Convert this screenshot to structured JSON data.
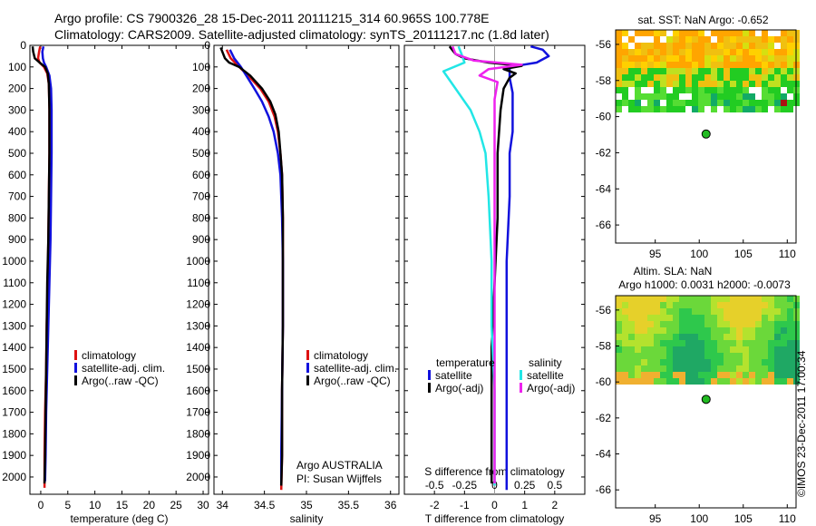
{
  "header": {
    "line1": "Argo profile: CS 7900326_28 15-Dec-2011 20111215_314 60.965S 100.778E",
    "line2": "Climatology: CARS2009. Satellite-adjusted climatology: synTS_20111217.nc (1.8d later)"
  },
  "colors": {
    "climatology": "#dd1111",
    "satellite": "#1111dd",
    "argo": "#000000",
    "sal_satellite": "#22e6e6",
    "sal_argo": "#ee22ee"
  },
  "chart_data": [
    {
      "type": "line",
      "id": "temperature",
      "xlabel": "temperature (deg C)",
      "ylabel": "",
      "xlim": [
        -2,
        31
      ],
      "ylim": [
        2080,
        0
      ],
      "xticks": [
        0,
        5,
        10,
        15,
        20,
        25,
        30
      ],
      "yticks": [
        0,
        100,
        200,
        300,
        400,
        500,
        600,
        700,
        800,
        900,
        1000,
        1100,
        1200,
        1300,
        1400,
        1500,
        1600,
        1700,
        1800,
        1900,
        2000
      ],
      "legend": [
        "climatology",
        "satellite-adj. clim.",
        "Argo(..raw -QC)"
      ],
      "series": [
        {
          "name": "climatology",
          "color": "#dd1111",
          "points": [
            [
              -0.1,
              5
            ],
            [
              -0.3,
              30
            ],
            [
              -0.5,
              60
            ],
            [
              -0.2,
              80
            ],
            [
              0.6,
              100
            ],
            [
              1.2,
              130
            ],
            [
              1.5,
              180
            ],
            [
              1.6,
              300
            ],
            [
              1.6,
              500
            ],
            [
              1.5,
              700
            ],
            [
              1.4,
              900
            ],
            [
              1.3,
              1100
            ],
            [
              1.1,
              1300
            ],
            [
              1.0,
              1500
            ],
            [
              0.8,
              1700
            ],
            [
              0.7,
              1900
            ],
            [
              0.7,
              2050
            ]
          ]
        },
        {
          "name": "satellite-adj. clim.",
          "color": "#1111dd",
          "points": [
            [
              0.5,
              5
            ],
            [
              0.3,
              30
            ],
            [
              0.4,
              60
            ],
            [
              0.6,
              80
            ],
            [
              1.0,
              100
            ],
            [
              1.6,
              140
            ],
            [
              1.9,
              200
            ],
            [
              2.0,
              300
            ],
            [
              2.0,
              500
            ],
            [
              1.9,
              700
            ],
            [
              1.8,
              900
            ],
            [
              1.6,
              1100
            ],
            [
              1.4,
              1300
            ],
            [
              1.2,
              1500
            ],
            [
              1.0,
              1700
            ],
            [
              0.9,
              1900
            ],
            [
              0.8,
              2020
            ]
          ]
        },
        {
          "name": "Argo(..raw -QC)",
          "color": "#000000",
          "points": [
            [
              -1.5,
              5
            ],
            [
              -1.4,
              30
            ],
            [
              -1.1,
              60
            ],
            [
              -0.2,
              80
            ],
            [
              0.8,
              100
            ],
            [
              1.3,
              130
            ],
            [
              1.5,
              180
            ],
            [
              1.6,
              300
            ],
            [
              1.6,
              500
            ],
            [
              1.5,
              700
            ],
            [
              1.4,
              900
            ],
            [
              1.2,
              1100
            ],
            [
              1.1,
              1300
            ],
            [
              1.0,
              1500
            ],
            [
              0.9,
              1700
            ],
            [
              0.8,
              1900
            ],
            [
              0.7,
              2030
            ]
          ]
        }
      ]
    },
    {
      "type": "line",
      "id": "salinity",
      "xlabel": "salinity",
      "xlim": [
        33.9,
        36.1
      ],
      "ylim": [
        2080,
        0
      ],
      "xticks": [
        34,
        34.5,
        35,
        35.5,
        36
      ],
      "yticks": [
        0,
        100,
        200,
        300,
        400,
        500,
        600,
        700,
        800,
        900,
        1000,
        1100,
        1200,
        1300,
        1400,
        1500,
        1600,
        1700,
        1800,
        1900,
        2000
      ],
      "legend": [
        "climatology",
        "satellite-adj. clim.",
        "Argo(..raw -QC)"
      ],
      "annotations": [
        "Argo AUSTRALIA",
        "PI: Susan Wijffels"
      ],
      "series": [
        {
          "name": "climatology",
          "color": "#dd1111",
          "points": [
            [
              34.05,
              20
            ],
            [
              34.1,
              60
            ],
            [
              34.2,
              100
            ],
            [
              34.33,
              150
            ],
            [
              34.45,
              200
            ],
            [
              34.55,
              260
            ],
            [
              34.62,
              330
            ],
            [
              34.66,
              400
            ],
            [
              34.69,
              500
            ],
            [
              34.71,
              600
            ],
            [
              34.72,
              800
            ],
            [
              34.72,
              1000
            ],
            [
              34.72,
              1300
            ],
            [
              34.71,
              1600
            ],
            [
              34.71,
              1900
            ],
            [
              34.7,
              2060
            ]
          ]
        },
        {
          "name": "satellite-adj. clim.",
          "color": "#1111dd",
          "points": [
            [
              34.09,
              20
            ],
            [
              34.14,
              60
            ],
            [
              34.22,
              100
            ],
            [
              34.3,
              150
            ],
            [
              34.38,
              200
            ],
            [
              34.47,
              260
            ],
            [
              34.55,
              330
            ],
            [
              34.61,
              400
            ],
            [
              34.66,
              500
            ],
            [
              34.69,
              600
            ],
            [
              34.71,
              800
            ],
            [
              34.72,
              1000
            ],
            [
              34.72,
              1300
            ],
            [
              34.71,
              1600
            ],
            [
              34.7,
              1900
            ],
            [
              34.7,
              2040
            ]
          ]
        },
        {
          "name": "Argo(..raw -QC)",
          "color": "#000000",
          "points": [
            [
              33.98,
              10
            ],
            [
              34.03,
              60
            ],
            [
              34.08,
              80
            ],
            [
              34.2,
              100
            ],
            [
              34.33,
              140
            ],
            [
              34.47,
              200
            ],
            [
              34.57,
              260
            ],
            [
              34.63,
              320
            ],
            [
              34.67,
              400
            ],
            [
              34.69,
              500
            ],
            [
              34.71,
              600
            ],
            [
              34.72,
              800
            ],
            [
              34.72,
              1000
            ],
            [
              34.72,
              1300
            ],
            [
              34.71,
              1600
            ],
            [
              34.71,
              1900
            ],
            [
              34.7,
              2040
            ]
          ]
        }
      ]
    },
    {
      "type": "line",
      "id": "differences",
      "xlabel": "T difference from climatology",
      "top_xlabel": "S difference from climatology",
      "xlim": [
        -3,
        3
      ],
      "ylim": [
        2080,
        0
      ],
      "xticks": [
        -2,
        -1,
        0,
        1,
        2
      ],
      "top_xticks": [
        "-0.5",
        "-0.25",
        "0",
        "0.25",
        "0.5"
      ],
      "top_xtick_values": [
        -2,
        -1,
        0,
        1,
        2
      ],
      "yticks": [
        0,
        100,
        200,
        300,
        400,
        500,
        600,
        700,
        800,
        900,
        1000,
        1100,
        1200,
        1300,
        1400,
        1500,
        1600,
        1700,
        1800,
        1900,
        2000
      ],
      "legend_titles": [
        "temperature",
        "salinity"
      ],
      "legend": [
        "satellite",
        "Argo(-adj)",
        "satellite",
        "Argo(-adj)"
      ],
      "series": [
        {
          "name": "T satellite",
          "color": "#1111dd",
          "points": [
            [
              1.2,
              5
            ],
            [
              1.6,
              20
            ],
            [
              1.8,
              50
            ],
            [
              1.4,
              80
            ],
            [
              0.5,
              100
            ],
            [
              0.5,
              150
            ],
            [
              0.6,
              220
            ],
            [
              0.6,
              300
            ],
            [
              0.6,
              400
            ],
            [
              0.5,
              500
            ],
            [
              0.5,
              700
            ],
            [
              0.4,
              1000
            ],
            [
              0.4,
              1300
            ],
            [
              0.4,
              1600
            ],
            [
              0.4,
              1900
            ],
            [
              0.4,
              2060
            ]
          ]
        },
        {
          "name": "T Argo(-adj)",
          "color": "#000000",
          "points": [
            [
              -1.5,
              5
            ],
            [
              -1.3,
              40
            ],
            [
              -1.0,
              60
            ],
            [
              -0.2,
              80
            ],
            [
              0.9,
              95
            ],
            [
              0.3,
              110
            ],
            [
              0.7,
              130
            ],
            [
              0.5,
              150
            ],
            [
              0.3,
              200
            ],
            [
              0.2,
              300
            ],
            [
              0.1,
              500
            ],
            [
              0.1,
              800
            ],
            [
              0.0,
              1100
            ],
            [
              -0.1,
              1400
            ],
            [
              -0.1,
              1700
            ],
            [
              -0.1,
              2030
            ]
          ]
        },
        {
          "name": "S satellite",
          "color": "#22e6e6",
          "points": [
            [
              -1.2,
              5
            ],
            [
              -1.1,
              40
            ],
            [
              -1.0,
              80
            ],
            [
              -1.7,
              120
            ],
            [
              -1.3,
              200
            ],
            [
              -0.8,
              300
            ],
            [
              -0.5,
              400
            ],
            [
              -0.3,
              500
            ],
            [
              -0.2,
              700
            ],
            [
              -0.1,
              1000
            ],
            [
              -0.1,
              1300
            ],
            [
              0.0,
              1600
            ],
            [
              0.0,
              1900
            ],
            [
              0.0,
              2040
            ]
          ]
        },
        {
          "name": "S Argo(-adj)",
          "color": "#ee22ee",
          "points": [
            [
              -1.4,
              5
            ],
            [
              -1.3,
              40
            ],
            [
              -0.7,
              70
            ],
            [
              0.9,
              90
            ],
            [
              -0.2,
              110
            ],
            [
              -0.5,
              140
            ],
            [
              0.1,
              170
            ],
            [
              0.0,
              250
            ],
            [
              0.0,
              400
            ],
            [
              0.0,
              700
            ],
            [
              0.0,
              1000
            ],
            [
              0.0,
              1300
            ],
            [
              0.0,
              1600
            ],
            [
              0.0,
              1900
            ],
            [
              0.0,
              2030
            ]
          ]
        }
      ]
    },
    {
      "type": "heatmap",
      "id": "sst_map",
      "title": "sat. SST: NaN Argo: -0.652",
      "xlim": [
        90.5,
        111
      ],
      "ylim": [
        -67,
        -55.2
      ],
      "xticks": [
        95,
        100,
        105,
        110
      ],
      "yticks": [
        -56,
        -58,
        -60,
        -62,
        -64,
        -66
      ],
      "float_position": {
        "lon": 100.778,
        "lat": -60.965
      }
    },
    {
      "type": "heatmap",
      "id": "sla_map",
      "title_line1": "Altim. SLA: NaN",
      "title_line2": "Argo h1000: 0.0031 h2000: -0.0073",
      "xlim": [
        90.5,
        111
      ],
      "ylim": [
        -67,
        -55.2
      ],
      "xticks": [
        95,
        100,
        105,
        110
      ],
      "yticks": [
        -56,
        -58,
        -60,
        -62,
        -64,
        -66
      ],
      "float_position": {
        "lon": 100.778,
        "lat": -60.965
      }
    }
  ],
  "watermark": "©IMOS 23-Dec-2011 17:00:34"
}
